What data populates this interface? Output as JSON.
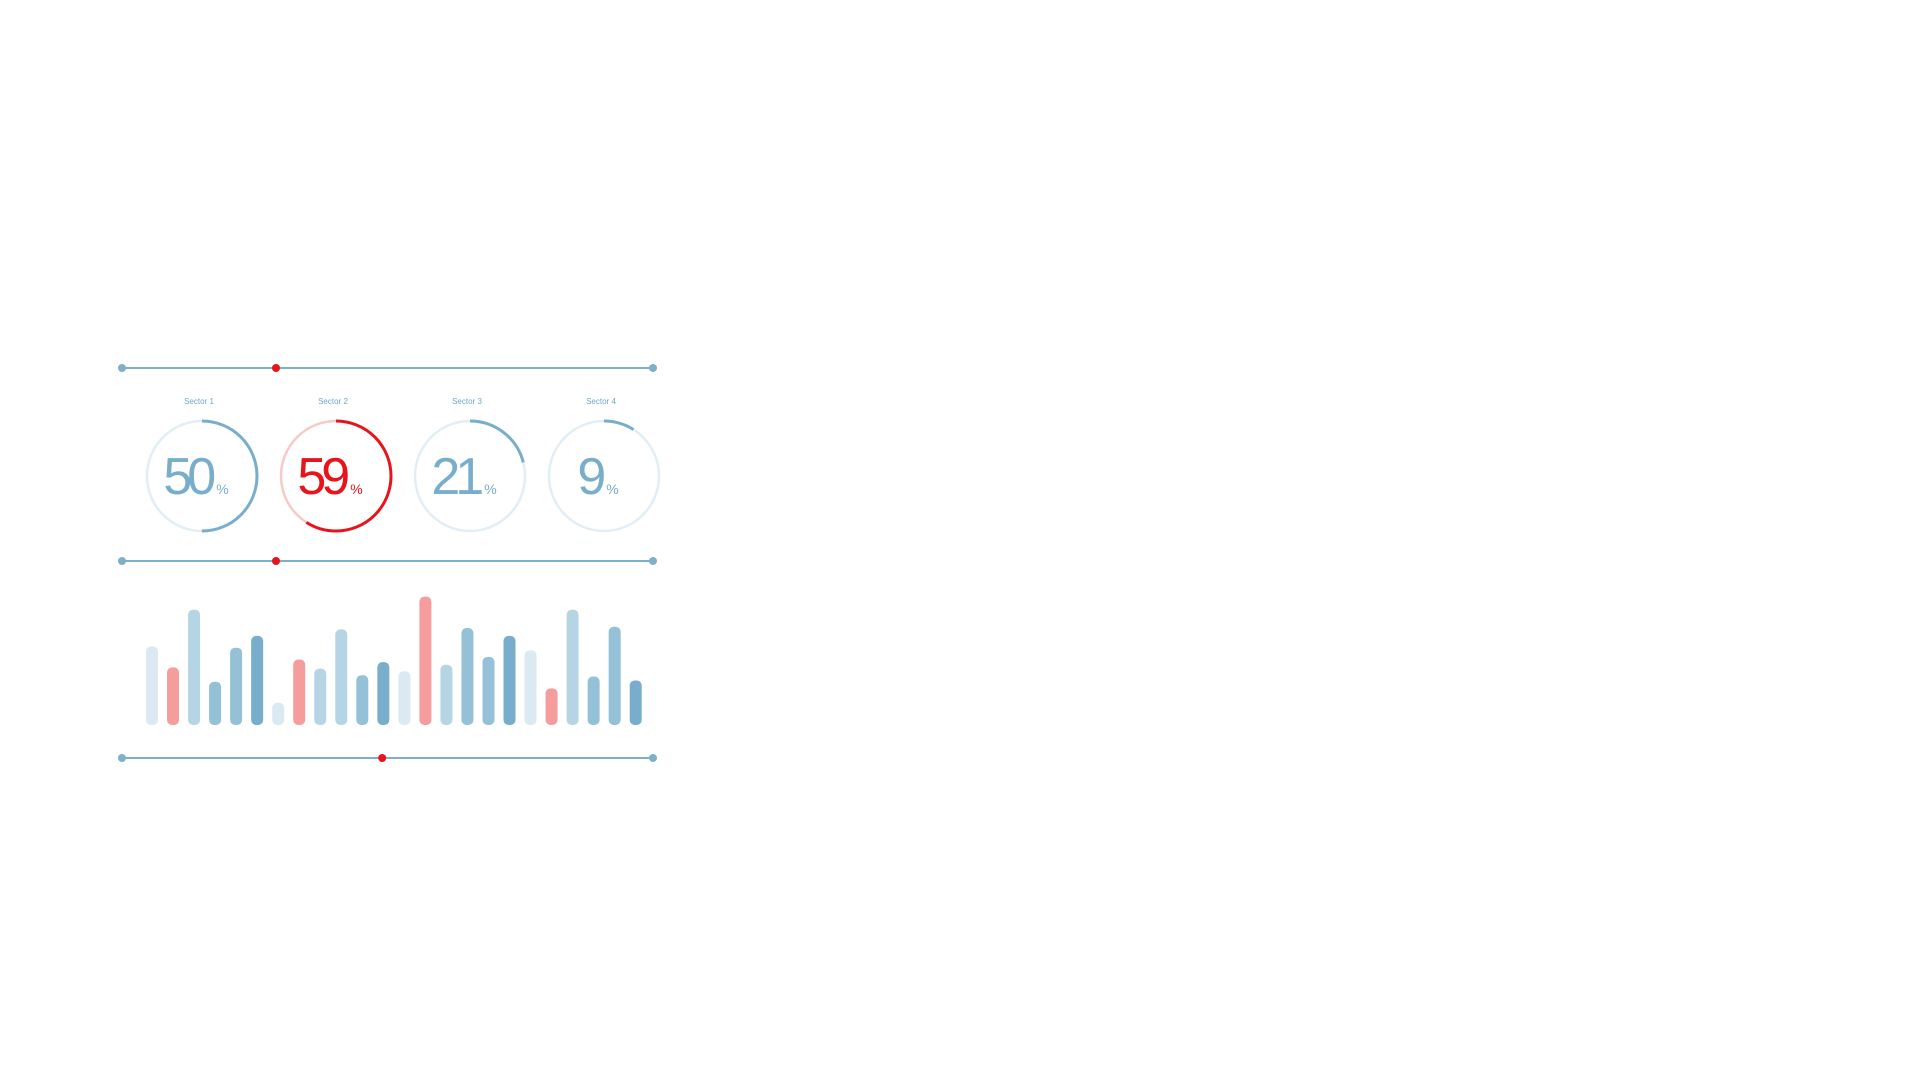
{
  "colors": {
    "line": "#7fb0cb",
    "marker": "#e8141b",
    "ring_track_blue": "#e2eef5",
    "ring_blue": "#78aecb",
    "ring_track_red": "#f8c9c9",
    "ring_red": "#e8141b",
    "bar_palette": [
      "#dbeaf2",
      "#b5d5e4",
      "#94c1d7",
      "#78aecb",
      "#f59d9d"
    ]
  },
  "sliders": [
    {
      "marker_fraction": 0.29
    },
    {
      "marker_fraction": 0.29
    },
    {
      "marker_fraction": 0.49
    }
  ],
  "gauges": [
    {
      "label": "Sector 1",
      "value": "50",
      "unit": "%",
      "percent": 50,
      "accent": "blue"
    },
    {
      "label": "Sector 2",
      "value": "59",
      "unit": "%",
      "percent": 59,
      "accent": "red"
    },
    {
      "label": "Sector 3",
      "value": "21",
      "unit": "%",
      "percent": 21,
      "accent": "blue"
    },
    {
      "label": "Sector 4",
      "value": "9",
      "unit": "%",
      "percent": 9,
      "accent": "blue"
    }
  ],
  "chart_data": {
    "type": "bar",
    "title": "",
    "xlabel": "",
    "ylabel": "",
    "ylim": [
      0,
      100
    ],
    "grid": false,
    "values": [
      60,
      44,
      88,
      33,
      59,
      68,
      17,
      50,
      43,
      73,
      38,
      48,
      41,
      98,
      46,
      74,
      52,
      68,
      57,
      28,
      88,
      37,
      75,
      34
    ],
    "shades": [
      0,
      4,
      1,
      2,
      2,
      3,
      0,
      4,
      1,
      1,
      2,
      3,
      0,
      4,
      1,
      2,
      2,
      3,
      0,
      4,
      1,
      2,
      2,
      3
    ]
  }
}
